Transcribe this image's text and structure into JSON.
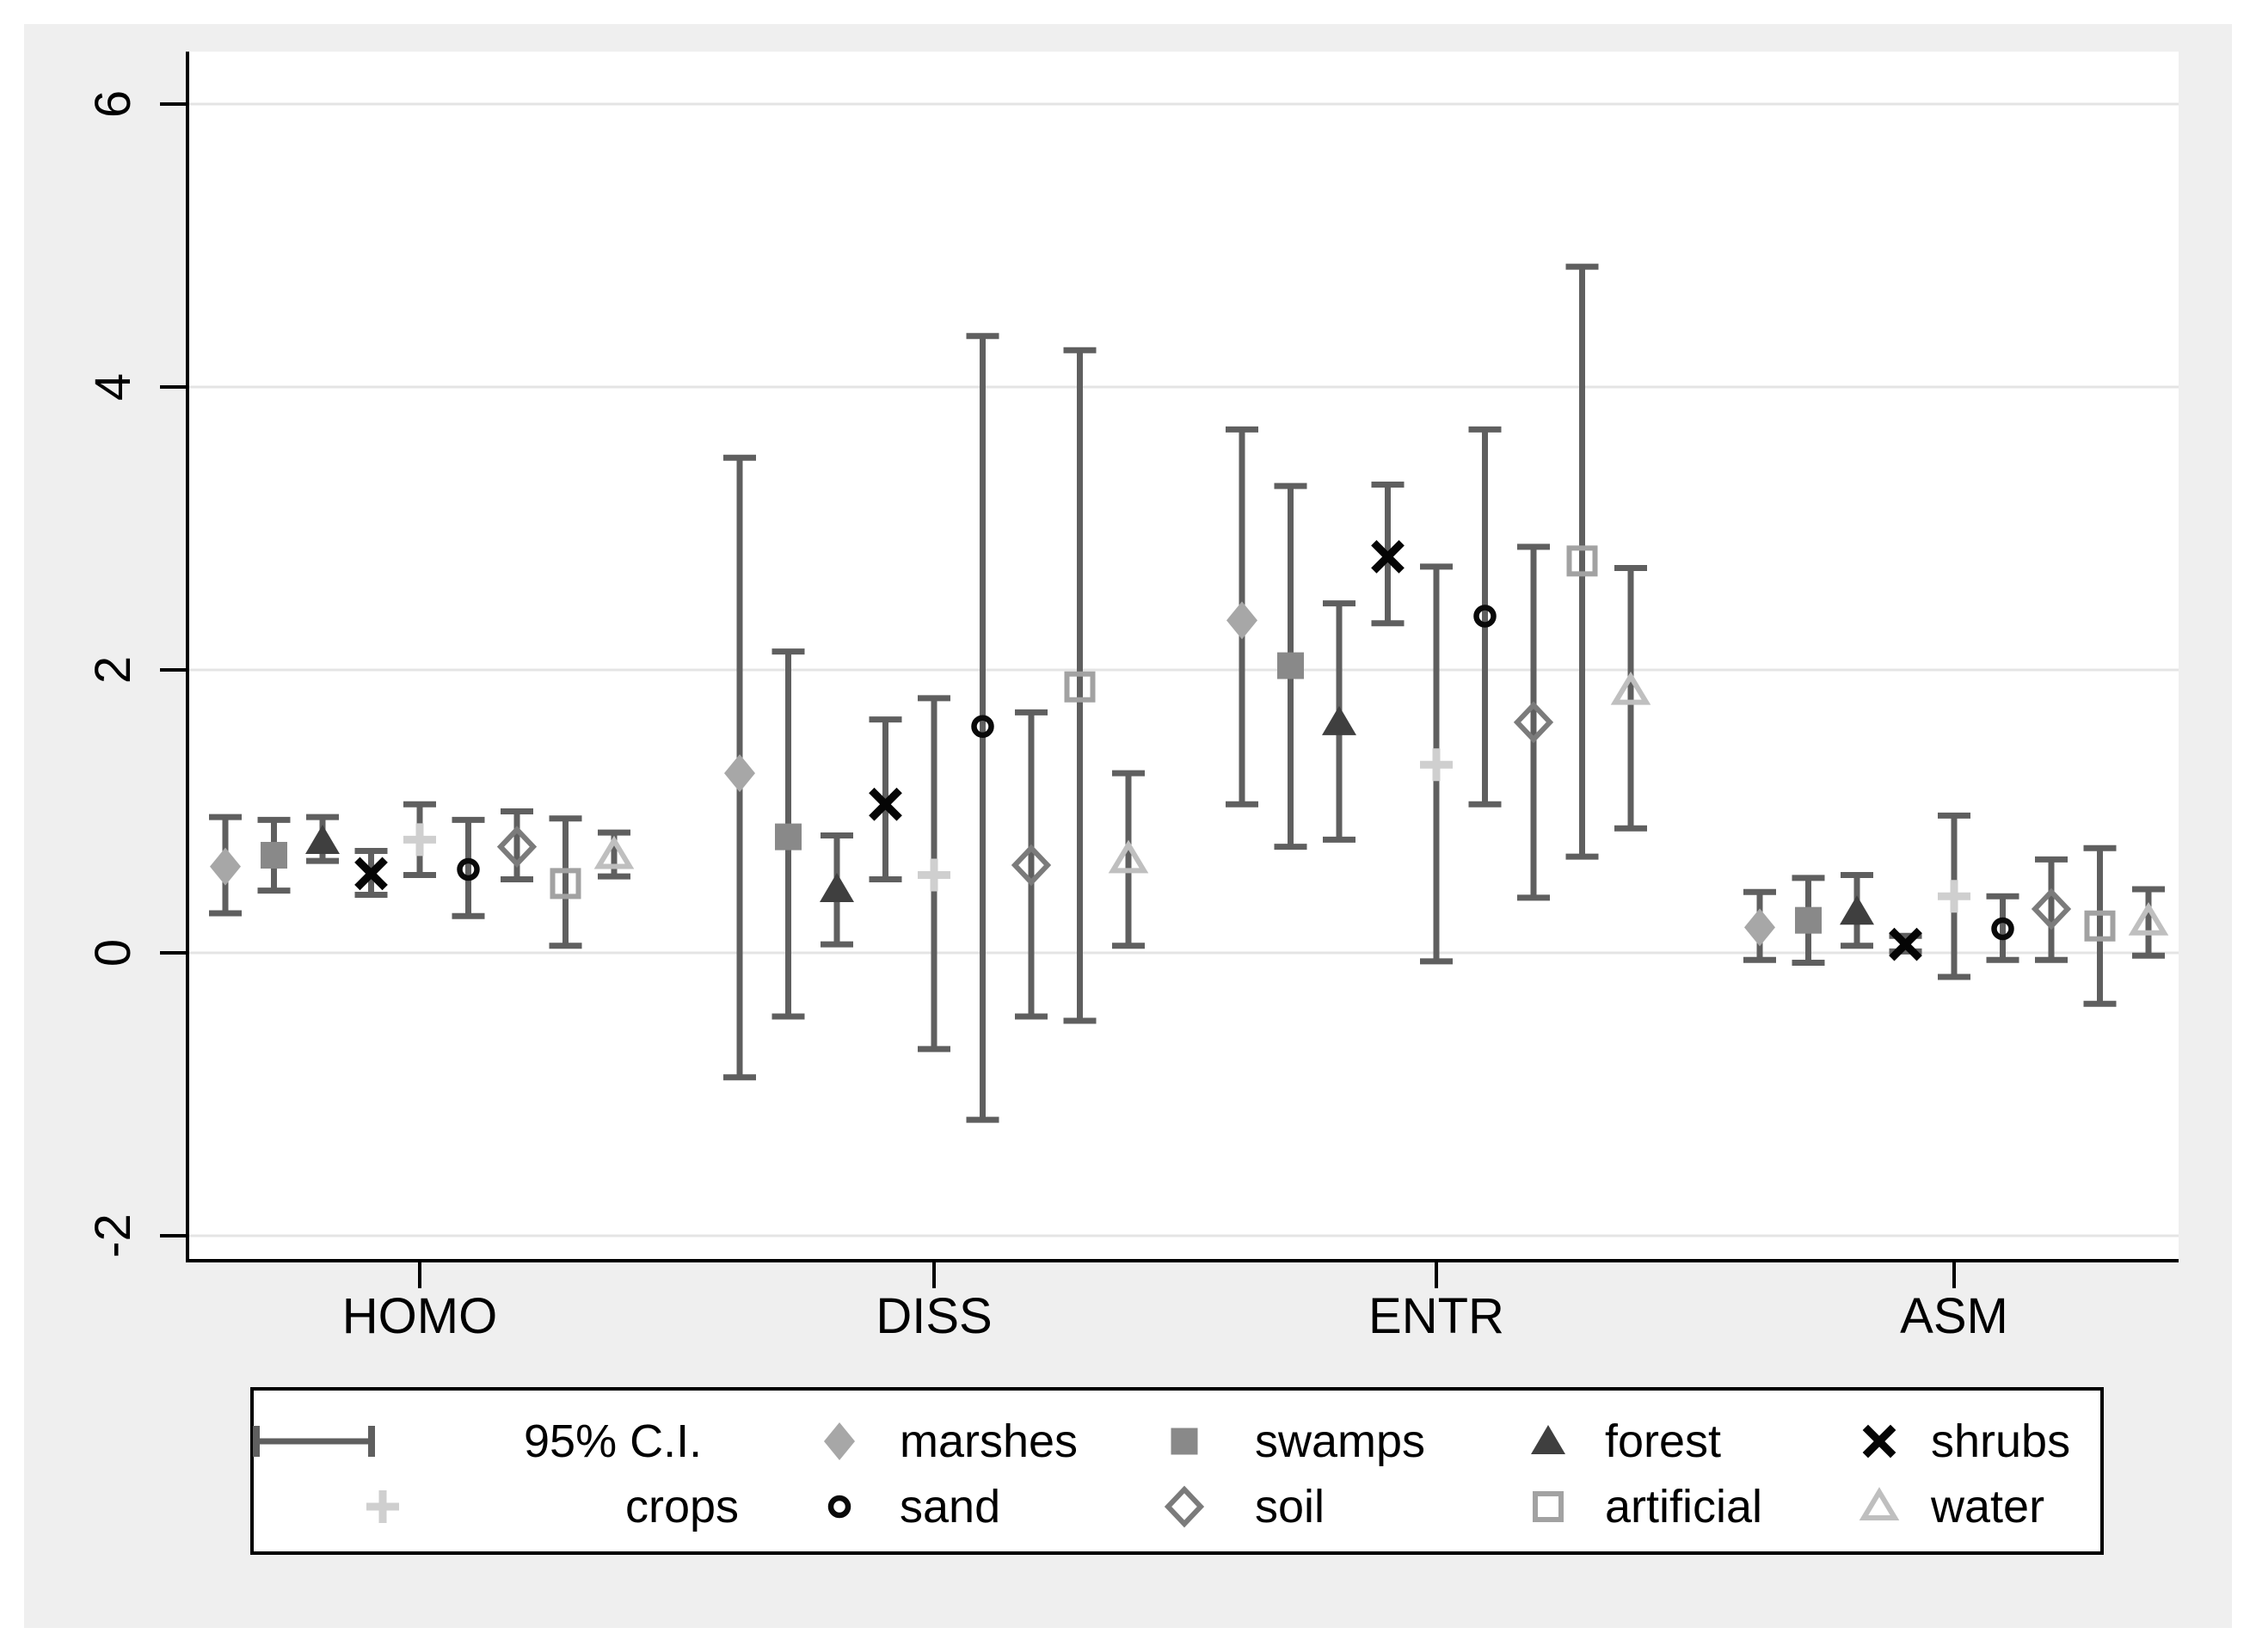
{
  "chart_data": {
    "type": "errorbar",
    "title": "",
    "xlabel": "",
    "ylabel": "",
    "categories": [
      "HOMO",
      "DISS",
      "ENTR",
      "ASM"
    ],
    "yticks": [
      -2,
      0,
      2,
      4,
      6
    ],
    "ytick_labels": [
      "6",
      "4",
      "2",
      "0",
      "-2"
    ],
    "ylim": [
      -2.2,
      6.35
    ],
    "grid": true,
    "legend_position": "bottom",
    "ci": {
      "label": "95% C.I.",
      "color": "#5f5f5f"
    },
    "style": {
      "panel_bg": "#efefef",
      "plot_bg": "#ffffff",
      "grid_color": "#e4e4e4",
      "axis_color": "#000000",
      "text_color": "#000000"
    },
    "series": [
      {
        "label": "marshes",
        "marker": "diamond",
        "color": "#a7a7a7",
        "values": [
          0.61,
          1.27,
          2.35,
          0.18
        ],
        "ci_low": [
          0.28,
          -0.88,
          1.05,
          -0.05
        ],
        "ci_high": [
          0.96,
          3.5,
          3.7,
          0.43
        ]
      },
      {
        "label": "swamps",
        "marker": "square",
        "color": "#898989",
        "values": [
          0.69,
          0.82,
          2.03,
          0.23
        ],
        "ci_low": [
          0.44,
          -0.45,
          0.75,
          -0.07
        ],
        "ci_high": [
          0.94,
          2.13,
          3.3,
          0.53
        ]
      },
      {
        "label": "forest",
        "marker": "triangle",
        "color": "#3f3f3f",
        "values": [
          0.79,
          0.45,
          1.63,
          0.29
        ],
        "ci_low": [
          0.65,
          0.06,
          0.8,
          0.05
        ],
        "ci_high": [
          0.96,
          0.83,
          2.47,
          0.55
        ]
      },
      {
        "label": "shrubs",
        "marker": "x",
        "color": "#050505",
        "values": [
          0.56,
          1.05,
          2.8,
          0.06
        ],
        "ci_low": [
          0.41,
          0.52,
          2.33,
          0.01
        ],
        "ci_high": [
          0.72,
          1.65,
          3.31,
          0.12
        ]
      },
      {
        "label": "crops",
        "marker": "plus",
        "color": "#cfcfcf",
        "values": [
          0.8,
          0.55,
          1.33,
          0.4
        ],
        "ci_low": [
          0.55,
          -0.68,
          -0.06,
          -0.17
        ],
        "ci_high": [
          1.05,
          1.8,
          2.73,
          0.97
        ]
      },
      {
        "label": "sand",
        "marker": "circle-open",
        "color": "#0a0a0a",
        "values": [
          0.59,
          1.6,
          2.38,
          0.17
        ],
        "ci_low": [
          0.26,
          -1.18,
          1.05,
          -0.05
        ],
        "ci_high": [
          0.94,
          4.36,
          3.7,
          0.4
        ]
      },
      {
        "label": "soil",
        "marker": "diamond-open",
        "color": "#7b7b7b",
        "values": [
          0.75,
          0.62,
          1.63,
          0.31
        ],
        "ci_low": [
          0.52,
          -0.45,
          0.39,
          -0.05
        ],
        "ci_high": [
          1.0,
          1.7,
          2.87,
          0.66
        ]
      },
      {
        "label": "artificial",
        "marker": "square-open",
        "color": "#a2a2a2",
        "values": [
          0.49,
          1.88,
          2.77,
          0.19
        ],
        "ci_low": [
          0.05,
          -0.48,
          0.68,
          -0.36
        ],
        "ci_high": [
          0.95,
          4.26,
          4.85,
          0.74
        ]
      },
      {
        "label": "water",
        "marker": "triangle-open",
        "color": "#bfbfbf",
        "values": [
          0.69,
          0.66,
          1.85,
          0.22
        ],
        "ci_low": [
          0.54,
          0.05,
          0.88,
          -0.02
        ],
        "ci_high": [
          0.85,
          1.27,
          2.72,
          0.45
        ]
      }
    ],
    "legend_rows": [
      [
        "ci",
        "marshes",
        "swamps",
        "forest",
        "shrubs"
      ],
      [
        "crops",
        "sand",
        "soil",
        "artificial",
        "water"
      ]
    ]
  }
}
